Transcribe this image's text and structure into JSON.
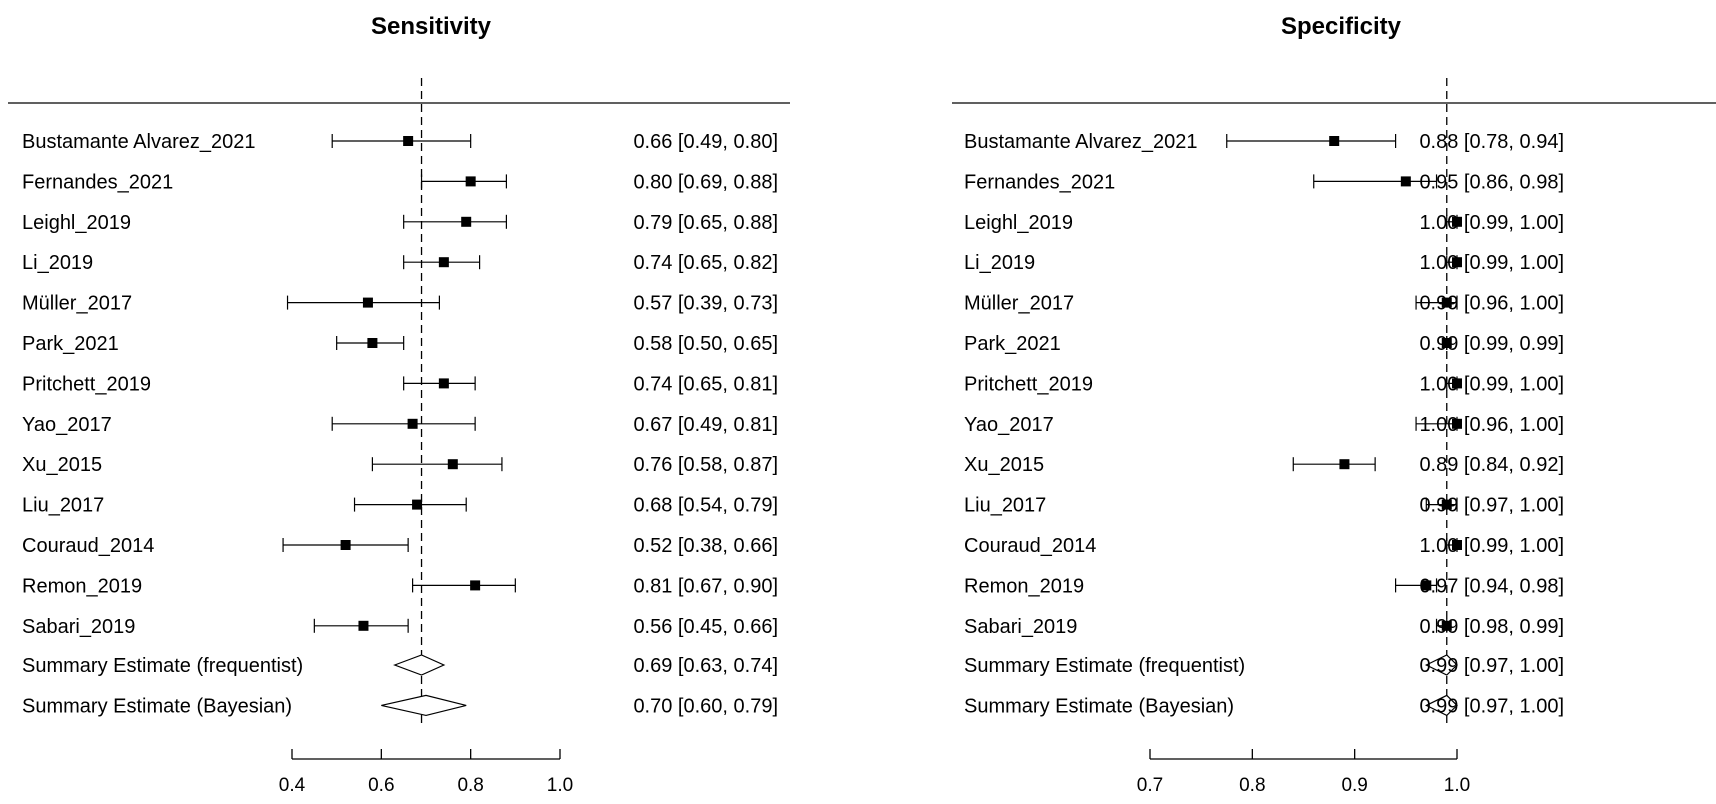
{
  "chart_data": [
    {
      "type": "forest",
      "title": "Sensitivity",
      "xlim": [
        0.4,
        1.0
      ],
      "xticks": [
        "0.4",
        "0.6",
        "0.8",
        "1.0"
      ],
      "reference_line": 0.69,
      "studies": [
        {
          "name": "Bustamante Alvarez_2021",
          "estimate": 0.66,
          "lower": 0.49,
          "upper": 0.8,
          "ci_text": "0.66 [0.49, 0.80]"
        },
        {
          "name": "Fernandes_2021",
          "estimate": 0.8,
          "lower": 0.69,
          "upper": 0.88,
          "ci_text": "0.80 [0.69, 0.88]"
        },
        {
          "name": "Leighl_2019",
          "estimate": 0.79,
          "lower": 0.65,
          "upper": 0.88,
          "ci_text": "0.79 [0.65, 0.88]"
        },
        {
          "name": "Li_2019",
          "estimate": 0.74,
          "lower": 0.65,
          "upper": 0.82,
          "ci_text": "0.74 [0.65, 0.82]"
        },
        {
          "name": "Müller_2017",
          "estimate": 0.57,
          "lower": 0.39,
          "upper": 0.73,
          "ci_text": "0.57 [0.39, 0.73]"
        },
        {
          "name": "Park_2021",
          "estimate": 0.58,
          "lower": 0.5,
          "upper": 0.65,
          "ci_text": "0.58 [0.50, 0.65]"
        },
        {
          "name": "Pritchett_2019",
          "estimate": 0.74,
          "lower": 0.65,
          "upper": 0.81,
          "ci_text": "0.74 [0.65, 0.81]"
        },
        {
          "name": "Yao_2017",
          "estimate": 0.67,
          "lower": 0.49,
          "upper": 0.81,
          "ci_text": "0.67 [0.49, 0.81]"
        },
        {
          "name": "Xu_2015",
          "estimate": 0.76,
          "lower": 0.58,
          "upper": 0.87,
          "ci_text": "0.76 [0.58, 0.87]"
        },
        {
          "name": "Liu_2017",
          "estimate": 0.68,
          "lower": 0.54,
          "upper": 0.79,
          "ci_text": "0.68 [0.54, 0.79]"
        },
        {
          "name": "Couraud_2014",
          "estimate": 0.52,
          "lower": 0.38,
          "upper": 0.66,
          "ci_text": "0.52 [0.38, 0.66]"
        },
        {
          "name": "Remon_2019",
          "estimate": 0.81,
          "lower": 0.67,
          "upper": 0.9,
          "ci_text": "0.81 [0.67, 0.90]"
        },
        {
          "name": "Sabari_2019",
          "estimate": 0.56,
          "lower": 0.45,
          "upper": 0.66,
          "ci_text": "0.56 [0.45, 0.66]"
        }
      ],
      "summaries": [
        {
          "name": "Summary Estimate (frequentist)",
          "estimate": 0.69,
          "lower": 0.63,
          "upper": 0.74,
          "ci_text": "0.69 [0.63, 0.74]"
        },
        {
          "name": "Summary Estimate (Bayesian)",
          "estimate": 0.7,
          "lower": 0.6,
          "upper": 0.79,
          "ci_text": "0.70 [0.60, 0.79]"
        }
      ]
    },
    {
      "type": "forest",
      "title": "Specificity",
      "xlim": [
        0.7,
        1.0
      ],
      "xticks": [
        "0.7",
        "0.8",
        "0.9",
        "1.0"
      ],
      "reference_line": 0.99,
      "studies": [
        {
          "name": "Bustamante Alvarez_2021",
          "estimate": 0.88,
          "lower": 0.775,
          "upper": 0.94,
          "ci_text": "0.88 [0.78, 0.94]"
        },
        {
          "name": "Fernandes_2021",
          "estimate": 0.95,
          "lower": 0.86,
          "upper": 0.98,
          "ci_text": "0.95 [0.86, 0.98]"
        },
        {
          "name": "Leighl_2019",
          "estimate": 1.0,
          "lower": 0.99,
          "upper": 1.0,
          "ci_text": "1.00 [0.99, 1.00]"
        },
        {
          "name": "Li_2019",
          "estimate": 1.0,
          "lower": 0.99,
          "upper": 1.0,
          "ci_text": "1.00 [0.99, 1.00]"
        },
        {
          "name": "Müller_2017",
          "estimate": 0.99,
          "lower": 0.96,
          "upper": 1.0,
          "ci_text": "0.99 [0.96, 1.00]"
        },
        {
          "name": "Park_2021",
          "estimate": 0.99,
          "lower": 0.99,
          "upper": 0.99,
          "ci_text": "0.99 [0.99, 0.99]"
        },
        {
          "name": "Pritchett_2019",
          "estimate": 1.0,
          "lower": 0.99,
          "upper": 1.0,
          "ci_text": "1.00 [0.99, 1.00]"
        },
        {
          "name": "Yao_2017",
          "estimate": 1.0,
          "lower": 0.96,
          "upper": 1.0,
          "ci_text": "1.00 [0.96, 1.00]"
        },
        {
          "name": "Xu_2015",
          "estimate": 0.89,
          "lower": 0.84,
          "upper": 0.92,
          "ci_text": "0.89 [0.84, 0.92]"
        },
        {
          "name": "Liu_2017",
          "estimate": 0.99,
          "lower": 0.97,
          "upper": 1.0,
          "ci_text": "0.99 [0.97, 1.00]"
        },
        {
          "name": "Couraud_2014",
          "estimate": 1.0,
          "lower": 0.99,
          "upper": 1.0,
          "ci_text": "1.00 [0.99, 1.00]"
        },
        {
          "name": "Remon_2019",
          "estimate": 0.97,
          "lower": 0.94,
          "upper": 0.98,
          "ci_text": "0.97 [0.94, 0.98]"
        },
        {
          "name": "Sabari_2019",
          "estimate": 0.99,
          "lower": 0.98,
          "upper": 0.99,
          "ci_text": "0.99 [0.98, 0.99]"
        }
      ],
      "summaries": [
        {
          "name": "Summary Estimate (frequentist)",
          "estimate": 0.99,
          "lower": 0.97,
          "upper": 1.0,
          "ci_text": "0.99 [0.97, 1.00]"
        },
        {
          "name": "Summary Estimate (Bayesian)",
          "estimate": 0.99,
          "lower": 0.97,
          "upper": 1.0,
          "ci_text": "0.99 [0.97, 1.00]"
        }
      ]
    }
  ]
}
